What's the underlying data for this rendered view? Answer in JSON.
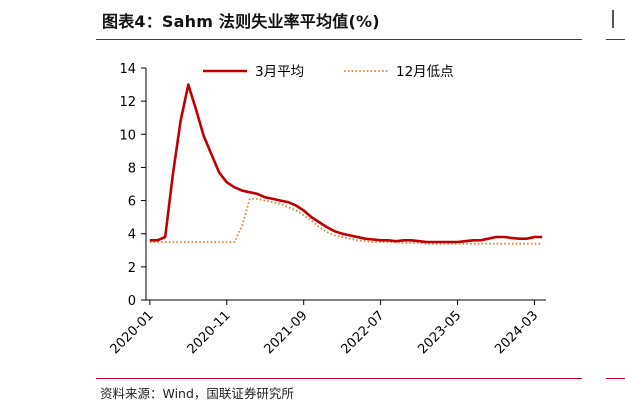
{
  "header": {
    "title": "图表4：Sahm 法则失业率平均值(%)"
  },
  "footer": {
    "source": "资料来源：Wind，国联证券研究所"
  },
  "chart_data": {
    "type": "line",
    "title": "图表4：Sahm 法则失业率平均值(%)",
    "xlabel": "",
    "ylabel": "",
    "ylim": [
      0,
      14
    ],
    "y_ticks": [
      0,
      2,
      4,
      6,
      8,
      10,
      12,
      14
    ],
    "x_tick_labels": [
      "2020-01",
      "2020-11",
      "2021-09",
      "2022-07",
      "2023-05",
      "2024-03"
    ],
    "grid": false,
    "legend_position": "top",
    "x": [
      "2020-01",
      "2020-02",
      "2020-03",
      "2020-04",
      "2020-05",
      "2020-06",
      "2020-07",
      "2020-08",
      "2020-09",
      "2020-10",
      "2020-11",
      "2020-12",
      "2021-01",
      "2021-02",
      "2021-03",
      "2021-04",
      "2021-05",
      "2021-06",
      "2021-07",
      "2021-08",
      "2021-09",
      "2021-10",
      "2021-11",
      "2021-12",
      "2022-01",
      "2022-02",
      "2022-03",
      "2022-04",
      "2022-05",
      "2022-06",
      "2022-07",
      "2022-08",
      "2022-09",
      "2022-10",
      "2022-11",
      "2022-12",
      "2023-01",
      "2023-02",
      "2023-03",
      "2023-04",
      "2023-05",
      "2023-06",
      "2023-07",
      "2023-08",
      "2023-09",
      "2023-10",
      "2023-11",
      "2023-12",
      "2024-01",
      "2024-02",
      "2024-03",
      "2024-04"
    ],
    "series": [
      {
        "name": "3月平均",
        "color": "#c00000",
        "style": "solid",
        "values": [
          3.6,
          3.6,
          3.8,
          7.6,
          10.8,
          13.0,
          11.5,
          9.9,
          8.8,
          7.7,
          7.1,
          6.8,
          6.6,
          6.5,
          6.4,
          6.2,
          6.1,
          6.0,
          5.9,
          5.7,
          5.4,
          5.0,
          4.7,
          4.4,
          4.15,
          4.0,
          3.9,
          3.8,
          3.7,
          3.65,
          3.6,
          3.6,
          3.55,
          3.6,
          3.6,
          3.55,
          3.5,
          3.5,
          3.5,
          3.5,
          3.5,
          3.55,
          3.6,
          3.6,
          3.7,
          3.8,
          3.8,
          3.75,
          3.7,
          3.7,
          3.8,
          3.8
        ]
      },
      {
        "name": "12月低点",
        "color": "#ed7d31",
        "style": "dotted",
        "values": [
          3.5,
          3.5,
          3.5,
          3.5,
          3.5,
          3.5,
          3.5,
          3.5,
          3.5,
          3.5,
          3.5,
          3.5,
          4.5,
          6.1,
          6.1,
          6.0,
          5.9,
          5.8,
          5.6,
          5.4,
          5.1,
          4.8,
          4.4,
          4.1,
          3.9,
          3.8,
          3.7,
          3.6,
          3.55,
          3.5,
          3.5,
          3.5,
          3.5,
          3.45,
          3.45,
          3.45,
          3.4,
          3.4,
          3.4,
          3.4,
          3.4,
          3.4,
          3.4,
          3.4,
          3.4,
          3.4,
          3.4,
          3.4,
          3.4,
          3.4,
          3.4,
          3.4
        ]
      }
    ]
  }
}
